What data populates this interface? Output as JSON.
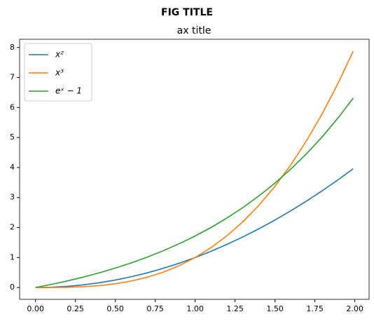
{
  "chart_data": {
    "type": "line",
    "suptitle": "FIG TITLE",
    "title": "ax title",
    "x": [
      0,
      0.1,
      0.2,
      0.3,
      0.4,
      0.5,
      0.6,
      0.7,
      0.8,
      0.9,
      1.0,
      1.1,
      1.2,
      1.3,
      1.4,
      1.5,
      1.6,
      1.7,
      1.8,
      1.9,
      1.99
    ],
    "series": [
      {
        "name": "x²",
        "color": "#1f77b4",
        "values": [
          0,
          0.01,
          0.04,
          0.09,
          0.16,
          0.25,
          0.36,
          0.49,
          0.64,
          0.81,
          1,
          1.21,
          1.44,
          1.69,
          1.96,
          2.25,
          2.56,
          2.89,
          3.24,
          3.61,
          3.9601
        ]
      },
      {
        "name": "x³",
        "color": "#ff7f0e",
        "values": [
          0,
          0.001,
          0.008,
          0.027,
          0.064,
          0.125,
          0.216,
          0.343,
          0.512,
          0.729,
          1,
          1.331,
          1.728,
          2.197,
          2.744,
          3.375,
          4.096,
          4.913,
          5.832,
          6.859,
          7.8806
        ]
      },
      {
        "name": "eˣ − 1",
        "color": "#2ca02c",
        "values": [
          0,
          0.1052,
          0.2214,
          0.3499,
          0.4918,
          0.6487,
          0.8221,
          1.0138,
          1.2255,
          1.4596,
          1.7183,
          2.0042,
          2.3201,
          2.6693,
          3.0552,
          3.4817,
          3.953,
          4.4739,
          5.0496,
          5.6859,
          6.3155
        ]
      }
    ],
    "xlim": [
      -0.0995,
      2.0895
    ],
    "ylim": [
      -0.394,
      8.275
    ],
    "xticks": [
      {
        "value": 0,
        "label": "0.00"
      },
      0.25,
      {
        "value": 0.5,
        "label": "0.50"
      },
      0.75,
      {
        "value": 1,
        "label": "1.00"
      },
      1.25,
      {
        "value": 1.5,
        "label": "1.50"
      },
      1.75,
      {
        "value": 2,
        "label": "2.00"
      }
    ],
    "yticks": [
      0,
      1,
      2,
      3,
      4,
      5,
      6,
      7,
      8
    ],
    "legend": "upper left"
  }
}
